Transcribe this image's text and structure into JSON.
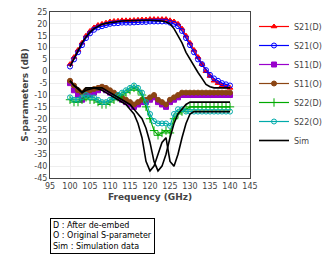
{
  "chart_data": {
    "type": "line",
    "xlabel": "Frequency (GHz)",
    "ylabel": "S-parameters (dB)",
    "x": [
      100,
      101,
      102,
      103,
      104,
      105,
      106,
      107,
      108,
      109,
      110,
      111,
      112,
      113,
      114,
      115,
      116,
      117,
      118,
      119,
      120,
      121,
      122,
      123,
      124,
      125,
      126,
      127,
      128,
      129,
      130,
      131,
      132,
      133,
      134,
      135,
      136,
      137,
      138,
      139,
      140
    ],
    "series": [
      {
        "name": "S21(D)",
        "color": "#ff0000",
        "marker": "triangle",
        "values": [
          3,
          6,
          9,
          12,
          15,
          17,
          18.5,
          19.5,
          20,
          20.5,
          21,
          21.2,
          21.3,
          21.5,
          21.5,
          21.5,
          21.6,
          21.7,
          21.8,
          21.8,
          22,
          22,
          22,
          22,
          22,
          21.5,
          21,
          20,
          18,
          15,
          12,
          9,
          6,
          3,
          0,
          -2,
          -4,
          -5,
          -6,
          -6.5,
          -7
        ]
      },
      {
        "name": "S21(O)",
        "color": "#0000ff",
        "marker": "circle-open",
        "values": [
          2,
          5,
          8,
          11,
          14,
          16,
          17.5,
          18.5,
          19,
          19.5,
          20,
          20.2,
          20.3,
          20.5,
          20.5,
          20.5,
          20.6,
          20.7,
          20.8,
          20.8,
          21,
          21,
          21,
          21,
          21,
          20.5,
          20,
          19,
          17,
          14,
          11,
          8,
          5,
          3,
          0.5,
          -1.5,
          -3,
          -4,
          -5,
          -5.5,
          -6
        ]
      },
      {
        "name": "S11(D)",
        "color": "#9900cc",
        "marker": "square",
        "values": [
          -5,
          -8,
          -10,
          -12,
          -10,
          -10,
          -9,
          -8,
          -7,
          -8,
          -9,
          -10,
          -11,
          -12,
          -13,
          -14,
          -15,
          -14,
          -13,
          -13,
          -12,
          -11,
          -13,
          -14,
          -15,
          -13,
          -12,
          -11,
          -10,
          -10,
          -10,
          -10,
          -10,
          -10,
          -10,
          -10,
          -10,
          -10,
          -10,
          -10,
          -10
        ]
      },
      {
        "name": "S11(O)",
        "color": "#8B4513",
        "marker": "circle",
        "values": [
          -4,
          -6,
          -8,
          -9,
          -8,
          -8,
          -7.5,
          -7,
          -6.5,
          -7,
          -8,
          -9,
          -10,
          -11,
          -12,
          -13,
          -14,
          -13,
          -12,
          -12,
          -11,
          -10,
          -12,
          -13,
          -14,
          -12,
          -11,
          -10,
          -9,
          -9,
          -9,
          -9,
          -9,
          -9,
          -9,
          -9,
          -9,
          -9,
          -9,
          -9,
          -9
        ]
      },
      {
        "name": "S22(D)",
        "color": "#00aa00",
        "marker": "plus",
        "values": [
          -12,
          -13,
          -13,
          -12,
          -11,
          -12,
          -12,
          -13,
          -14,
          -14,
          -13,
          -12,
          -11,
          -10,
          -9,
          -8,
          -7,
          -8,
          -10,
          -15,
          -20,
          -25,
          -27,
          -26,
          -25,
          -26,
          -20,
          -18,
          -17,
          -16,
          -15,
          -15,
          -15,
          -15,
          -15,
          -15,
          -15,
          -15,
          -15,
          -15,
          -15
        ]
      },
      {
        "name": "S22(O)",
        "color": "#00AAAA",
        "marker": "circle-open",
        "values": [
          -11,
          -12,
          -12,
          -11,
          -10,
          -11,
          -11,
          -12,
          -13,
          -13,
          -12,
          -11,
          -10,
          -9,
          -8,
          -7,
          -6,
          -7,
          -9,
          -13,
          -18,
          -21,
          -22,
          -22,
          -22,
          -23,
          -18,
          -16,
          -16,
          -17,
          -17,
          -17,
          -17,
          -17,
          -17,
          -17,
          -17,
          -17,
          -17,
          -17,
          -17
        ]
      },
      {
        "name": "Sim",
        "color": "#000000",
        "values": [
          2,
          5.5,
          8.5,
          12,
          14.5,
          16.5,
          18,
          19,
          19.8,
          20.2,
          20.5,
          20.8,
          21,
          21.2,
          21.3,
          21.4,
          21.5,
          21.5,
          21.5,
          21.5,
          21.5,
          21.5,
          21.4,
          21.2,
          20.8,
          20,
          18,
          15,
          12,
          8,
          5,
          2,
          -0.5,
          -3,
          -5.5,
          -6.5,
          -7,
          -7,
          -7,
          -7,
          -7
        ]
      },
      {
        "name": "Sim",
        "color": "#000000",
        "values": [
          -4,
          -6,
          -7,
          -9,
          -8,
          -7.5,
          -7,
          -7,
          -7,
          -8,
          -9,
          -10,
          -11,
          -12,
          -13,
          -14,
          -16,
          -18,
          -20,
          -24,
          -30,
          -38,
          -42,
          -40,
          -35,
          -28,
          -22,
          -18,
          -16,
          -14,
          -13,
          -13,
          -13,
          -13,
          -13,
          -13,
          -13,
          -13,
          -13,
          -13,
          -13
        ]
      },
      {
        "name": "Sim",
        "color": "#000000",
        "values": [
          -4,
          -6,
          -7.5,
          -9,
          -7,
          -7,
          -7,
          -7.5,
          -8,
          -9,
          -10,
          -11,
          -12,
          -13,
          -14,
          -16,
          -18,
          -22,
          -28,
          -38,
          -42,
          -40,
          -35,
          -30,
          -28,
          -38,
          -40,
          -35,
          -28,
          -22,
          -18,
          -17,
          -17,
          -17,
          -17,
          -17,
          -17,
          -17,
          -17,
          -17,
          -17
        ]
      }
    ],
    "xlim": [
      95,
      145
    ],
    "xticks": [
      95,
      100,
      105,
      110,
      115,
      120,
      125,
      130,
      135,
      140,
      145
    ],
    "ylim": [
      -45,
      25
    ],
    "yticks": [
      -45,
      -40,
      -35,
      -30,
      -25,
      -20,
      -15,
      -10,
      -5,
      0,
      5,
      10,
      15,
      20,
      25
    ],
    "grid": true,
    "legend": "right",
    "annotation": "D : After de-embed\nO : Original S-parameter\nSim : Simulation data"
  }
}
